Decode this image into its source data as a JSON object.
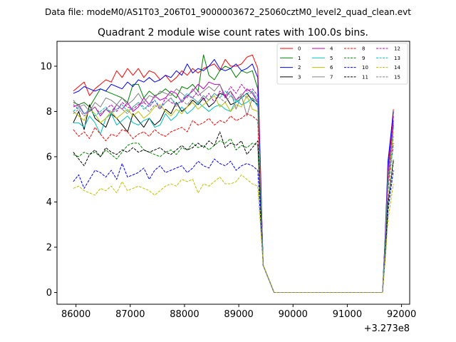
{
  "chart_data": {
    "type": "line",
    "suptitle": "Data file: modeM0/AS1T03_206T01_9000003672_25060cztM0_level2_quad_clean.evt",
    "title": "Quadrant 2 module wise count rates with 100.0s bins.",
    "xlabel": "",
    "ylabel": "",
    "x_offset_label": "+3.273e8",
    "xlim": [
      85650,
      92150
    ],
    "ylim": [
      -0.52,
      11.1
    ],
    "x_ticks": [
      86000,
      87000,
      88000,
      89000,
      90000,
      91000,
      92000
    ],
    "x_tick_labels": [
      "86000",
      "87000",
      "88000",
      "89000",
      "90000",
      "91000",
      "92000"
    ],
    "y_ticks": [
      0,
      2,
      4,
      6,
      8,
      10
    ],
    "y_tick_labels": [
      "0",
      "2",
      "4",
      "6",
      "8",
      "10"
    ],
    "x_start": 85950,
    "x_step": 100,
    "gap": {
      "x0": 89650,
      "x1": 91650
    },
    "series": [
      {
        "name": "0",
        "color": "#ff0000",
        "dash": "solid",
        "values": [
          8.9,
          9.1,
          9.3,
          8.7,
          9.0,
          9.2,
          9.4,
          9.3,
          9.8,
          9.5,
          9.9,
          9.6,
          9.9,
          9.5,
          9.8,
          9.7,
          9.4,
          9.6,
          9.3,
          9.5,
          9.8,
          9.6,
          9.9,
          9.7,
          9.9,
          10.0,
          10.1,
          9.8,
          10.3,
          10.0,
          10.0,
          10.1,
          10.4,
          10.5,
          9.9
        ],
        "tail": [
          5.6,
          8.1
        ]
      },
      {
        "name": "1",
        "color": "#008000",
        "dash": "solid",
        "values": [
          8.4,
          8.3,
          8.4,
          8.2,
          8.6,
          9.0,
          8.9,
          8.8,
          8.7,
          8.6,
          8.4,
          9.2,
          9.2,
          8.6,
          8.9,
          8.7,
          8.8,
          9.0,
          8.8,
          8.6,
          9.1,
          9.0,
          9.2,
          8.9,
          10.5,
          9.6,
          9.4,
          9.8,
          10.0,
          9.9,
          9.5,
          9.8,
          9.7,
          9.8,
          9.0
        ],
        "tail": [
          5.3,
          7.6
        ]
      },
      {
        "name": "2",
        "color": "#0000ff",
        "dash": "solid",
        "values": [
          8.8,
          8.9,
          9.1,
          9.0,
          8.9,
          9.0,
          8.9,
          9.2,
          9.1,
          9.0,
          9.3,
          9.1,
          9.4,
          9.3,
          9.5,
          9.3,
          9.4,
          9.6,
          9.5,
          9.8,
          9.6,
          10.1,
          9.7,
          9.9,
          9.8,
          10.0,
          10.3,
          9.9,
          9.8,
          9.9,
          10.1,
          9.8,
          9.9,
          10.1,
          9.5
        ],
        "tail": [
          5.8,
          8.0
        ]
      },
      {
        "name": "3",
        "color": "#000000",
        "dash": "solid",
        "values": [
          7.5,
          8.0,
          7.2,
          8.3,
          7.7,
          7.5,
          7.3,
          7.9,
          7.7,
          7.4,
          7.1,
          7.9,
          7.6,
          7.3,
          7.7,
          7.4,
          7.6,
          8.1,
          7.9,
          8.4,
          8.0,
          8.2,
          8.5,
          8.3,
          8.6,
          8.2,
          8.4,
          8.8,
          8.7,
          8.3,
          8.4,
          8.6,
          8.8,
          8.5,
          8.3
        ],
        "tail": [
          5.2,
          7.4
        ]
      },
      {
        "name": "4",
        "color": "#bf00bf",
        "dash": "solid",
        "values": [
          8.2,
          8.3,
          7.9,
          8.0,
          8.2,
          7.8,
          8.1,
          7.9,
          8.3,
          8.1,
          8.4,
          8.0,
          8.2,
          8.6,
          8.3,
          8.7,
          8.5,
          8.6,
          8.9,
          8.8,
          8.4,
          8.7,
          8.9,
          9.2,
          9.0,
          9.3,
          9.2,
          9.2,
          8.6,
          8.9,
          8.5,
          8.7,
          9.0,
          8.8,
          8.4
        ],
        "tail": [
          5.4,
          7.8
        ]
      },
      {
        "name": "5",
        "color": "#00bfbf",
        "dash": "solid",
        "values": [
          7.5,
          7.5,
          7.3,
          7.8,
          7.5,
          7.0,
          7.7,
          7.9,
          7.4,
          7.6,
          7.8,
          7.5,
          7.4,
          7.6,
          7.7,
          7.3,
          7.4,
          7.9,
          7.6,
          7.8,
          8.2,
          7.9,
          8.1,
          8.4,
          8.2,
          8.0,
          8.2,
          8.3,
          8.1,
          8.0,
          8.5,
          8.3,
          8.4,
          8.6,
          8.2
        ],
        "tail": [
          5.0,
          7.3
        ]
      },
      {
        "name": "6",
        "color": "#bfbf00",
        "dash": "solid",
        "values": [
          8.0,
          7.8,
          7.6,
          8.1,
          7.9,
          7.5,
          7.7,
          8.0,
          7.7,
          7.9,
          8.1,
          7.8,
          8.0,
          7.7,
          7.9,
          8.2,
          8.3,
          8.0,
          7.8,
          8.1,
          7.9,
          8.2,
          8.4,
          8.1,
          8.3,
          8.5,
          8.7,
          8.2,
          8.4,
          8.0,
          8.3,
          8.2,
          8.7,
          8.1,
          8.0
        ],
        "tail": [
          4.8,
          7.1
        ]
      },
      {
        "name": "7",
        "color": "#808080",
        "dash": "solid",
        "values": [
          8.5,
          8.2,
          8.3,
          8.0,
          8.4,
          8.2,
          8.6,
          8.5,
          8.3,
          8.6,
          8.3,
          8.5,
          8.8,
          8.4,
          8.7,
          8.6,
          8.9,
          8.8,
          8.7,
          9.0,
          8.8,
          8.6,
          9.0,
          8.7,
          8.9,
          9.1,
          8.9,
          9.2,
          8.7,
          8.9,
          8.1,
          8.7,
          7.8,
          8.6,
          8.4
        ],
        "tail": [
          5.2,
          7.5
        ]
      },
      {
        "name": "8",
        "color": "#ff0000",
        "dash": "dashed",
        "values": [
          7.2,
          6.9,
          7.1,
          6.8,
          7.3,
          7.0,
          6.7,
          7.0,
          6.9,
          7.2,
          7.1,
          6.8,
          7.0,
          7.1,
          6.9,
          7.2,
          7.0,
          6.9,
          7.1,
          7.2,
          7.3,
          7.1,
          7.6,
          7.4,
          7.5,
          7.7,
          7.4,
          7.6,
          7.5,
          7.8,
          7.6,
          7.7,
          7.9,
          7.8,
          7.6
        ],
        "tail": [
          4.5,
          6.6
        ]
      },
      {
        "name": "9",
        "color": "#008000",
        "dash": "dashed",
        "values": [
          6.1,
          6.0,
          6.2,
          6.1,
          6.2,
          6.0,
          6.3,
          6.1,
          5.9,
          6.2,
          6.5,
          6.6,
          6.6,
          6.3,
          6.2,
          6.1,
          6.0,
          6.2,
          6.3,
          6.1,
          6.4,
          6.3,
          6.6,
          6.4,
          6.5,
          6.3,
          6.5,
          6.7,
          6.6,
          6.8,
          6.3,
          6.5,
          6.4,
          6.6,
          6.5
        ],
        "tail": [
          4.0,
          5.9
        ]
      },
      {
        "name": "10",
        "color": "#0000ff",
        "dash": "dashed",
        "values": [
          4.9,
          5.2,
          4.6,
          5.0,
          5.4,
          5.3,
          5.1,
          5.4,
          5.0,
          5.7,
          5.1,
          5.2,
          5.3,
          5.5,
          5.0,
          5.4,
          5.6,
          5.3,
          5.4,
          5.5,
          5.6,
          5.3,
          5.5,
          5.8,
          5.6,
          5.5,
          5.9,
          5.7,
          5.6,
          5.8,
          5.4,
          5.6,
          5.7,
          5.6,
          5.4
        ],
        "tail": [
          3.6,
          5.4
        ]
      },
      {
        "name": "11",
        "color": "#000000",
        "dash": "dashed",
        "values": [
          6.2,
          5.9,
          5.6,
          6.1,
          6.3,
          6.0,
          6.4,
          6.2,
          6.1,
          6.3,
          6.2,
          6.4,
          6.2,
          6.3,
          6.2,
          6.3,
          6.4,
          6.2,
          6.1,
          6.3,
          6.5,
          6.3,
          6.4,
          6.6,
          6.4,
          6.7,
          6.5,
          7.1,
          6.4,
          6.6,
          6.5,
          6.7,
          6.1,
          6.4,
          6.7
        ],
        "tail": [
          3.9,
          5.8
        ]
      },
      {
        "name": "12",
        "color": "#bf00bf",
        "dash": "dashed",
        "values": [
          8.3,
          8.1,
          7.8,
          8.0,
          8.2,
          7.9,
          8.1,
          8.3,
          8.0,
          8.4,
          8.2,
          8.1,
          8.3,
          8.4,
          8.2,
          8.5,
          8.1,
          8.6,
          8.4,
          8.3,
          8.5,
          8.7,
          8.6,
          8.9,
          8.5,
          8.8,
          8.4,
          8.9,
          8.7,
          9.1,
          8.8,
          9.2,
          8.9,
          9.0,
          8.7
        ],
        "tail": [
          5.0,
          7.6
        ]
      },
      {
        "name": "13",
        "color": "#00bfbf",
        "dash": "dashed",
        "values": [
          8.0,
          8.2,
          7.9,
          8.1,
          7.8,
          8.0,
          8.2,
          7.9,
          8.1,
          8.3,
          8.0,
          8.2,
          8.4,
          8.1,
          8.3,
          8.5,
          8.2,
          8.4,
          8.6,
          8.3,
          8.5,
          8.8,
          8.6,
          8.4,
          8.7,
          8.5,
          8.8,
          8.6,
          8.9,
          8.7,
          8.4,
          8.6,
          8.8,
          8.9,
          8.5
        ],
        "tail": [
          4.9,
          6.4
        ]
      },
      {
        "name": "14",
        "color": "#bfbf00",
        "dash": "dashed",
        "values": [
          4.6,
          4.7,
          4.5,
          4.4,
          4.3,
          4.6,
          4.5,
          4.7,
          4.4,
          4.9,
          4.5,
          4.6,
          4.7,
          4.6,
          4.5,
          4.3,
          4.5,
          4.7,
          4.8,
          4.7,
          5.0,
          4.9,
          5.0,
          4.4,
          4.8,
          4.7,
          4.9,
          5.1,
          4.8,
          4.8,
          4.9,
          5.2,
          5.0,
          4.8,
          4.7
        ],
        "tail": [
          3.2,
          4.8
        ]
      },
      {
        "name": "15",
        "color": "#808080",
        "dash": "dashed",
        "values": [
          7.9,
          8.1,
          7.8,
          8.0,
          8.2,
          7.9,
          8.1,
          8.0,
          8.3,
          8.1,
          7.9,
          8.2,
          8.4,
          8.2,
          8.0,
          8.3,
          8.1,
          8.4,
          8.6,
          8.2,
          8.5,
          8.3,
          8.6,
          8.4,
          8.7,
          8.5,
          8.8,
          8.6,
          8.4,
          8.7,
          8.5,
          8.8,
          8.6,
          8.9,
          8.4
        ],
        "tail": [
          4.7,
          6.9
        ]
      }
    ]
  }
}
